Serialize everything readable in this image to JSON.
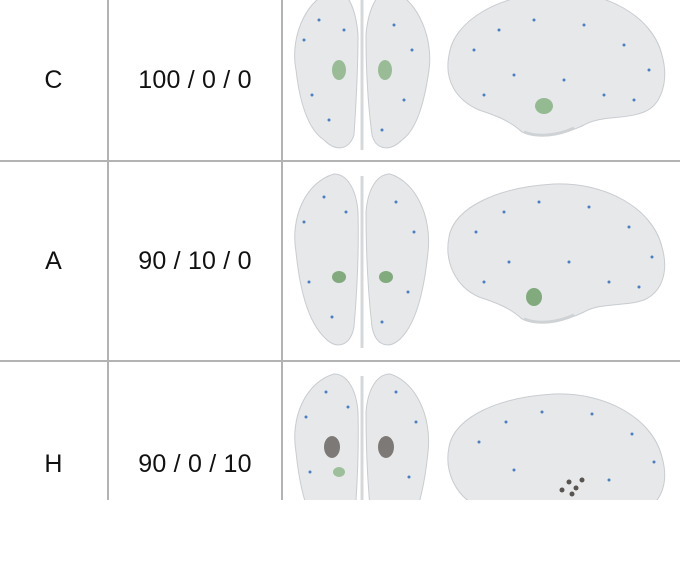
{
  "table": {
    "rows": [
      {
        "condition": "C",
        "ratio": "100 / 0 / 0",
        "highlight": "green"
      },
      {
        "condition": "A",
        "ratio": "90 / 10 / 0",
        "highlight": "green-strong"
      },
      {
        "condition": "H",
        "ratio": "90 / 0 / 10",
        "highlight": "dark"
      }
    ]
  },
  "colors": {
    "grid": "#b3b3b3",
    "brain_fill": "#e6e8ea",
    "brain_stroke": "#c9ccd0",
    "node_blue": "#4a7fc1",
    "region_green": "#7fae7a",
    "region_dark": "#5a5450"
  },
  "icons": [
    "brain-axial-view-image",
    "brain-sagittal-view-image"
  ]
}
